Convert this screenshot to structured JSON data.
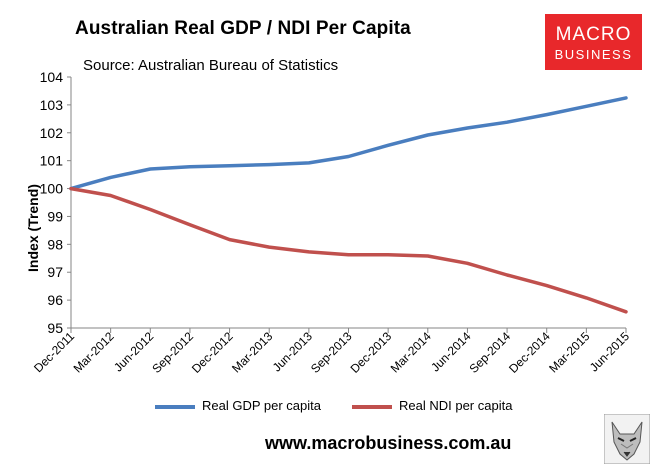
{
  "title": "Australian Real GDP / NDI Per Capita",
  "source": "Source: Australian Bureau of Statistics",
  "logo": {
    "line1": "MACRO",
    "line2": "BUSINESS",
    "color": "#e8282b"
  },
  "footer": "www.macrobusiness.com.au",
  "colors": {
    "gdp": "#4a7ebf",
    "ndi": "#c0504d",
    "axis": "#868686"
  },
  "chart_data": {
    "type": "line",
    "title": "Australian Real GDP / NDI Per Capita",
    "ylabel": "Index (Trend)",
    "xlabel": "",
    "ylim": [
      95,
      104
    ],
    "yticks": [
      95,
      96,
      97,
      98,
      99,
      100,
      101,
      102,
      103,
      104
    ],
    "grid": false,
    "legend": "bottom",
    "categories": [
      "Dec-2011",
      "Mar-2012",
      "Jun-2012",
      "Sep-2012",
      "Dec-2012",
      "Mar-2013",
      "Jun-2013",
      "Sep-2013",
      "Dec-2013",
      "Mar-2014",
      "Jun-2014",
      "Sep-2014",
      "Dec-2014",
      "Mar-2015",
      "Jun-2015"
    ],
    "series": [
      {
        "name": "Real GDP per capita",
        "color": "#4a7ebf",
        "values": [
          100.0,
          100.4,
          100.7,
          100.78,
          100.82,
          100.86,
          100.92,
          101.15,
          101.55,
          101.92,
          102.17,
          102.38,
          102.65,
          102.95,
          103.25
        ]
      },
      {
        "name": "Real NDI per capita",
        "color": "#c0504d",
        "values": [
          100.0,
          99.75,
          99.25,
          98.7,
          98.17,
          97.9,
          97.73,
          97.63,
          97.63,
          97.58,
          97.32,
          96.9,
          96.52,
          96.08,
          95.58
        ]
      }
    ]
  }
}
